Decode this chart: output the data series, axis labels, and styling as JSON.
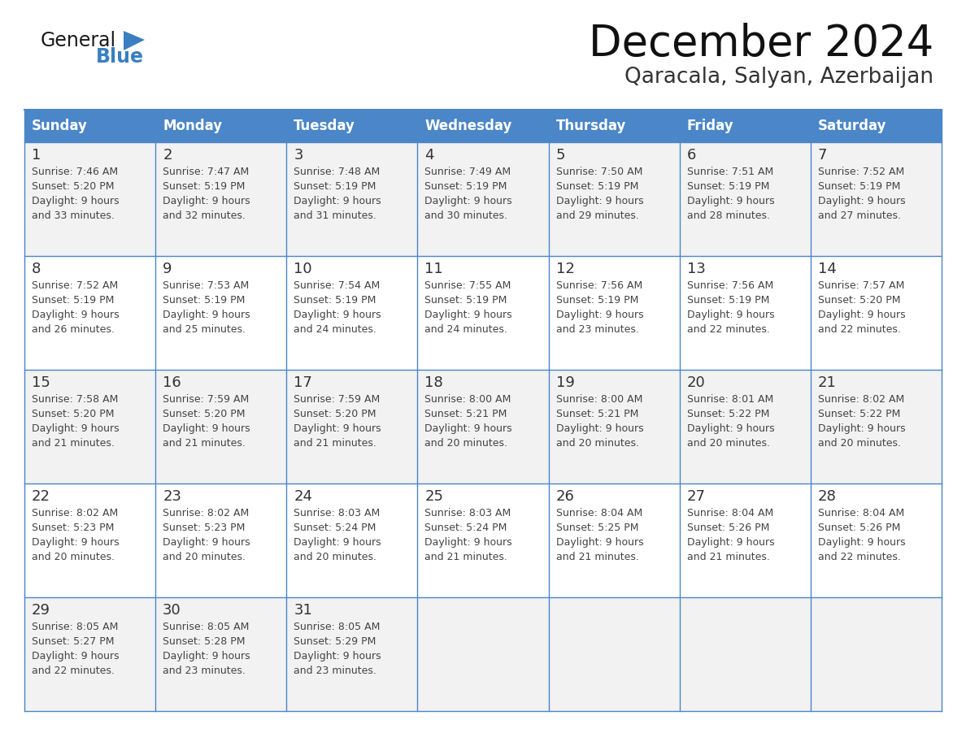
{
  "title": "December 2024",
  "subtitle": "Qaracala, Salyan, Azerbaijan",
  "header_color": "#4a86c8",
  "header_text_color": "#ffffff",
  "cell_bg_even": "#f2f2f2",
  "cell_bg_odd": "#ffffff",
  "border_color": "#4a86c8",
  "text_color": "#444444",
  "day_number_color": "#333333",
  "title_color": "#111111",
  "subtitle_color": "#333333",
  "logo_general_color": "#1a1a1a",
  "logo_blue_color": "#3a7fc1",
  "logo_triangle_color": "#3a7fc1",
  "days_of_week": [
    "Sunday",
    "Monday",
    "Tuesday",
    "Wednesday",
    "Thursday",
    "Friday",
    "Saturday"
  ],
  "calendar_data": [
    [
      {
        "day": 1,
        "sunrise": "7:46 AM",
        "sunset": "5:20 PM",
        "daylight_hours": 9,
        "daylight_minutes": 33
      },
      {
        "day": 2,
        "sunrise": "7:47 AM",
        "sunset": "5:19 PM",
        "daylight_hours": 9,
        "daylight_minutes": 32
      },
      {
        "day": 3,
        "sunrise": "7:48 AM",
        "sunset": "5:19 PM",
        "daylight_hours": 9,
        "daylight_minutes": 31
      },
      {
        "day": 4,
        "sunrise": "7:49 AM",
        "sunset": "5:19 PM",
        "daylight_hours": 9,
        "daylight_minutes": 30
      },
      {
        "day": 5,
        "sunrise": "7:50 AM",
        "sunset": "5:19 PM",
        "daylight_hours": 9,
        "daylight_minutes": 29
      },
      {
        "day": 6,
        "sunrise": "7:51 AM",
        "sunset": "5:19 PM",
        "daylight_hours": 9,
        "daylight_minutes": 28
      },
      {
        "day": 7,
        "sunrise": "7:52 AM",
        "sunset": "5:19 PM",
        "daylight_hours": 9,
        "daylight_minutes": 27
      }
    ],
    [
      {
        "day": 8,
        "sunrise": "7:52 AM",
        "sunset": "5:19 PM",
        "daylight_hours": 9,
        "daylight_minutes": 26
      },
      {
        "day": 9,
        "sunrise": "7:53 AM",
        "sunset": "5:19 PM",
        "daylight_hours": 9,
        "daylight_minutes": 25
      },
      {
        "day": 10,
        "sunrise": "7:54 AM",
        "sunset": "5:19 PM",
        "daylight_hours": 9,
        "daylight_minutes": 24
      },
      {
        "day": 11,
        "sunrise": "7:55 AM",
        "sunset": "5:19 PM",
        "daylight_hours": 9,
        "daylight_minutes": 24
      },
      {
        "day": 12,
        "sunrise": "7:56 AM",
        "sunset": "5:19 PM",
        "daylight_hours": 9,
        "daylight_minutes": 23
      },
      {
        "day": 13,
        "sunrise": "7:56 AM",
        "sunset": "5:19 PM",
        "daylight_hours": 9,
        "daylight_minutes": 22
      },
      {
        "day": 14,
        "sunrise": "7:57 AM",
        "sunset": "5:20 PM",
        "daylight_hours": 9,
        "daylight_minutes": 22
      }
    ],
    [
      {
        "day": 15,
        "sunrise": "7:58 AM",
        "sunset": "5:20 PM",
        "daylight_hours": 9,
        "daylight_minutes": 21
      },
      {
        "day": 16,
        "sunrise": "7:59 AM",
        "sunset": "5:20 PM",
        "daylight_hours": 9,
        "daylight_minutes": 21
      },
      {
        "day": 17,
        "sunrise": "7:59 AM",
        "sunset": "5:20 PM",
        "daylight_hours": 9,
        "daylight_minutes": 21
      },
      {
        "day": 18,
        "sunrise": "8:00 AM",
        "sunset": "5:21 PM",
        "daylight_hours": 9,
        "daylight_minutes": 20
      },
      {
        "day": 19,
        "sunrise": "8:00 AM",
        "sunset": "5:21 PM",
        "daylight_hours": 9,
        "daylight_minutes": 20
      },
      {
        "day": 20,
        "sunrise": "8:01 AM",
        "sunset": "5:22 PM",
        "daylight_hours": 9,
        "daylight_minutes": 20
      },
      {
        "day": 21,
        "sunrise": "8:02 AM",
        "sunset": "5:22 PM",
        "daylight_hours": 9,
        "daylight_minutes": 20
      }
    ],
    [
      {
        "day": 22,
        "sunrise": "8:02 AM",
        "sunset": "5:23 PM",
        "daylight_hours": 9,
        "daylight_minutes": 20
      },
      {
        "day": 23,
        "sunrise": "8:02 AM",
        "sunset": "5:23 PM",
        "daylight_hours": 9,
        "daylight_minutes": 20
      },
      {
        "day": 24,
        "sunrise": "8:03 AM",
        "sunset": "5:24 PM",
        "daylight_hours": 9,
        "daylight_minutes": 20
      },
      {
        "day": 25,
        "sunrise": "8:03 AM",
        "sunset": "5:24 PM",
        "daylight_hours": 9,
        "daylight_minutes": 21
      },
      {
        "day": 26,
        "sunrise": "8:04 AM",
        "sunset": "5:25 PM",
        "daylight_hours": 9,
        "daylight_minutes": 21
      },
      {
        "day": 27,
        "sunrise": "8:04 AM",
        "sunset": "5:26 PM",
        "daylight_hours": 9,
        "daylight_minutes": 21
      },
      {
        "day": 28,
        "sunrise": "8:04 AM",
        "sunset": "5:26 PM",
        "daylight_hours": 9,
        "daylight_minutes": 22
      }
    ],
    [
      {
        "day": 29,
        "sunrise": "8:05 AM",
        "sunset": "5:27 PM",
        "daylight_hours": 9,
        "daylight_minutes": 22
      },
      {
        "day": 30,
        "sunrise": "8:05 AM",
        "sunset": "5:28 PM",
        "daylight_hours": 9,
        "daylight_minutes": 23
      },
      {
        "day": 31,
        "sunrise": "8:05 AM",
        "sunset": "5:29 PM",
        "daylight_hours": 9,
        "daylight_minutes": 23
      },
      null,
      null,
      null,
      null
    ]
  ],
  "logo_text_general": "General",
  "logo_text_blue": "Blue"
}
